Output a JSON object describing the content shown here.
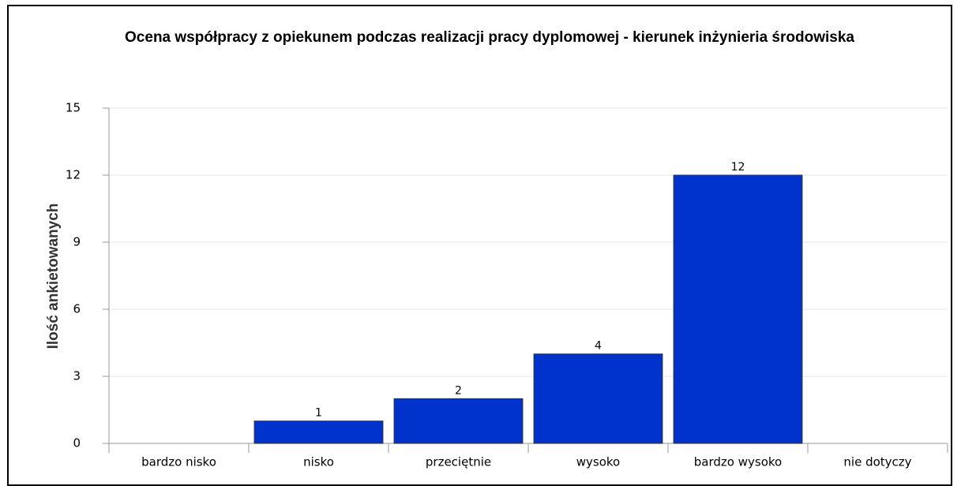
{
  "chart_data": {
    "type": "bar",
    "title": "Ocena współpracy z opiekunem podczas realizacji pracy dyplomowej - kierunek inżynieria środowiska",
    "y_label": "Ilość ankietowanych",
    "categories": [
      "bardzo nisko",
      "nisko",
      "przeciętnie",
      "wysoko",
      "bardzo wysoko",
      "nie dotyczy"
    ],
    "values": [
      0,
      1,
      2,
      4,
      12,
      0
    ],
    "color": "#0033cc",
    "ylim": [
      0,
      15
    ],
    "yticks": [
      0,
      3,
      6,
      9,
      12,
      15
    ],
    "grid": true
  }
}
